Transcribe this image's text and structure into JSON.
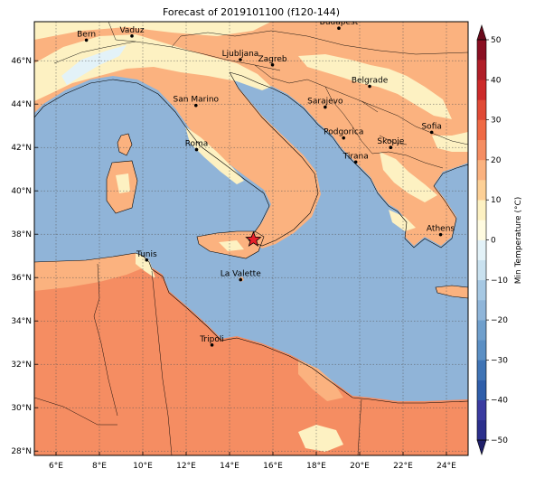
{
  "title": "Forecast of 2019101100 (f120-144)",
  "map": {
    "lon_range": [
      5,
      25
    ],
    "lat_range": [
      27.8,
      47.8
    ],
    "grid": true,
    "lon_ticks": [
      {
        "value": 6,
        "label": "6°E"
      },
      {
        "value": 8,
        "label": "8°E"
      },
      {
        "value": 10,
        "label": "10°E"
      },
      {
        "value": 12,
        "label": "12°E"
      },
      {
        "value": 14,
        "label": "14°E"
      },
      {
        "value": 16,
        "label": "16°E"
      },
      {
        "value": 18,
        "label": "18°E"
      },
      {
        "value": 20,
        "label": "20°E"
      },
      {
        "value": 22,
        "label": "22°E"
      },
      {
        "value": 24,
        "label": "24°E"
      }
    ],
    "lat_ticks": [
      {
        "value": 28,
        "label": "28°N"
      },
      {
        "value": 30,
        "label": "30°N"
      },
      {
        "value": 32,
        "label": "32°N"
      },
      {
        "value": 34,
        "label": "34°N"
      },
      {
        "value": 36,
        "label": "36°N"
      },
      {
        "value": 38,
        "label": "38°N"
      },
      {
        "value": 40,
        "label": "40°N"
      },
      {
        "value": 42,
        "label": "42°N"
      },
      {
        "value": 44,
        "label": "44°N"
      },
      {
        "value": 46,
        "label": "46°N"
      }
    ],
    "cities": [
      {
        "name": "Bern",
        "lon": 7.4,
        "lat": 46.95
      },
      {
        "name": "Vaduz",
        "lon": 9.5,
        "lat": 47.14
      },
      {
        "name": "Budapest",
        "lon": 19.04,
        "lat": 47.5
      },
      {
        "name": "Ljubljana",
        "lon": 14.5,
        "lat": 46.05
      },
      {
        "name": "Zagreb",
        "lon": 15.98,
        "lat": 45.81
      },
      {
        "name": "San Marino",
        "lon": 12.45,
        "lat": 43.94
      },
      {
        "name": "Belgrade",
        "lon": 20.46,
        "lat": 44.82
      },
      {
        "name": "Sarajevo",
        "lon": 18.41,
        "lat": 43.86
      },
      {
        "name": "Sofia",
        "lon": 23.32,
        "lat": 42.7
      },
      {
        "name": "Roma",
        "lon": 12.48,
        "lat": 41.9
      },
      {
        "name": "Podgorica",
        "lon": 19.26,
        "lat": 42.44
      },
      {
        "name": "Skopje",
        "lon": 21.43,
        "lat": 42.0
      },
      {
        "name": "Tirana",
        "lon": 19.82,
        "lat": 41.33
      },
      {
        "name": "Athens",
        "lon": 23.73,
        "lat": 37.98
      },
      {
        "name": "Tunis",
        "lon": 10.18,
        "lat": 36.81
      },
      {
        "name": "La Valette",
        "lon": 14.51,
        "lat": 35.9
      },
      {
        "name": "Tripoli",
        "lon": 13.19,
        "lat": 32.89
      }
    ],
    "marker": {
      "type": "star",
      "lon": 15.1,
      "lat": 37.75,
      "color": "#e8202a"
    }
  },
  "colorbar": {
    "label": "Min Temperature (°C)",
    "tick_values": [
      -50,
      -40,
      -30,
      -20,
      -10,
      0,
      10,
      20,
      30,
      40,
      50
    ],
    "extend": "both",
    "bins": [
      {
        "from": -50,
        "to": -45,
        "color": "#2b2f8c"
      },
      {
        "from": -45,
        "to": -40,
        "color": "#3a3ba0"
      },
      {
        "from": -40,
        "to": -35,
        "color": "#2f5eaa"
      },
      {
        "from": -35,
        "to": -30,
        "color": "#3f74b5"
      },
      {
        "from": -30,
        "to": -25,
        "color": "#5b8fc4"
      },
      {
        "from": -25,
        "to": -20,
        "color": "#6f9fcc"
      },
      {
        "from": -20,
        "to": -15,
        "color": "#8fb5d9"
      },
      {
        "from": -15,
        "to": -10,
        "color": "#a6c8e3"
      },
      {
        "from": -10,
        "to": -5,
        "color": "#c9e1ef"
      },
      {
        "from": -5,
        "to": 0,
        "color": "#e3f2f8"
      },
      {
        "from": 0,
        "to": 5,
        "color": "#fffbe0"
      },
      {
        "from": 5,
        "to": 10,
        "color": "#fdf1c2"
      },
      {
        "from": 10,
        "to": 15,
        "color": "#fdd096"
      },
      {
        "from": 15,
        "to": 20,
        "color": "#fbb27f"
      },
      {
        "from": 20,
        "to": 25,
        "color": "#f58d62"
      },
      {
        "from": 25,
        "to": 30,
        "color": "#ef6a45"
      },
      {
        "from": 30,
        "to": 35,
        "color": "#e04a36"
      },
      {
        "from": 35,
        "to": 40,
        "color": "#cc2a2a"
      },
      {
        "from": 40,
        "to": 45,
        "color": "#b01e28"
      },
      {
        "from": 45,
        "to": 50,
        "color": "#8a0f22"
      }
    ],
    "under_color": "#1f1f6a",
    "over_color": "#6a0a1c"
  },
  "palette": {
    "sea": "#90b4d8",
    "land_warm": "#fbb27f",
    "land_hot": "#f58d62",
    "land_mild": "#fdf1c2",
    "land_cool": "#e3f2f8"
  }
}
